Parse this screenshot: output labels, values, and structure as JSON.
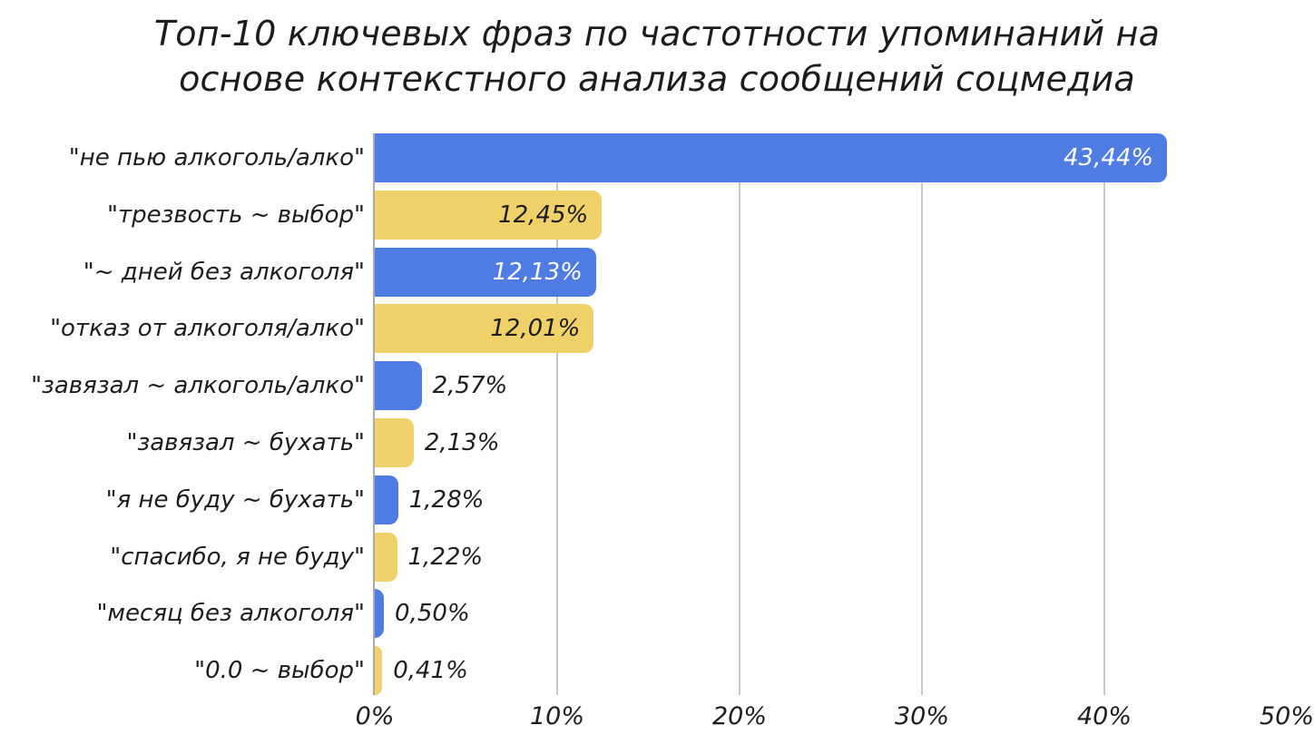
{
  "title": {
    "line1": "Топ-10 ключевых фраз по частотности упоминаний на",
    "line2": "основе контекстного анализа сообщений соцмедиа"
  },
  "chart_data": {
    "type": "bar",
    "orientation": "horizontal",
    "title": "Топ-10 ключевых фраз по частотности упоминаний на основе контекстного анализа сообщений соцмедиа",
    "xlabel": "",
    "ylabel": "",
    "xlim": [
      0,
      50
    ],
    "x_ticks": [
      0,
      10,
      20,
      30,
      40,
      50
    ],
    "x_tick_labels": [
      "0%",
      "10%",
      "20%",
      "30%",
      "40%",
      "50%"
    ],
    "gridlines_at": [
      10,
      20,
      30,
      40
    ],
    "legend": "none",
    "bars": [
      {
        "category": "\"не пью алкоголь/алко\"",
        "value": 43.44,
        "label": "43,44%",
        "color": "blue"
      },
      {
        "category": "\"трезвость ~ выбор\"",
        "value": 12.45,
        "label": "12,45%",
        "color": "yellow"
      },
      {
        "category": "\"~ дней без алкоголя\"",
        "value": 12.13,
        "label": "12,13%",
        "color": "blue"
      },
      {
        "category": "\"отказ от алкоголя/алко\"",
        "value": 12.01,
        "label": "12,01%",
        "color": "yellow"
      },
      {
        "category": "\"завязал ~ алкоголь/алко\"",
        "value": 2.57,
        "label": "2,57%",
        "color": "blue"
      },
      {
        "category": "\"завязал ~ бухать\"",
        "value": 2.13,
        "label": "2,13%",
        "color": "yellow"
      },
      {
        "category": "\"я не буду ~ бухать\"",
        "value": 1.28,
        "label": "1,28%",
        "color": "blue"
      },
      {
        "category": "\"спасибо, я не буду\"",
        "value": 1.22,
        "label": "1,22%",
        "color": "yellow"
      },
      {
        "category": "\"месяц без алкоголя\"",
        "value": 0.5,
        "label": "0,50%",
        "color": "blue"
      },
      {
        "category": "\"0.0 ~ выбор\"",
        "value": 0.41,
        "label": "0,41%",
        "color": "yellow"
      }
    ],
    "colors": {
      "blue": "#4e7ce2",
      "yellow": "#f0d169",
      "gridline": "#c9c9c9",
      "axis_line": "#aaaaaa",
      "text": "#1d1d1d",
      "value_on_blue": "#ffffff",
      "value_on_yellow": "#1d1d1d",
      "background": "#ffffff"
    }
  }
}
